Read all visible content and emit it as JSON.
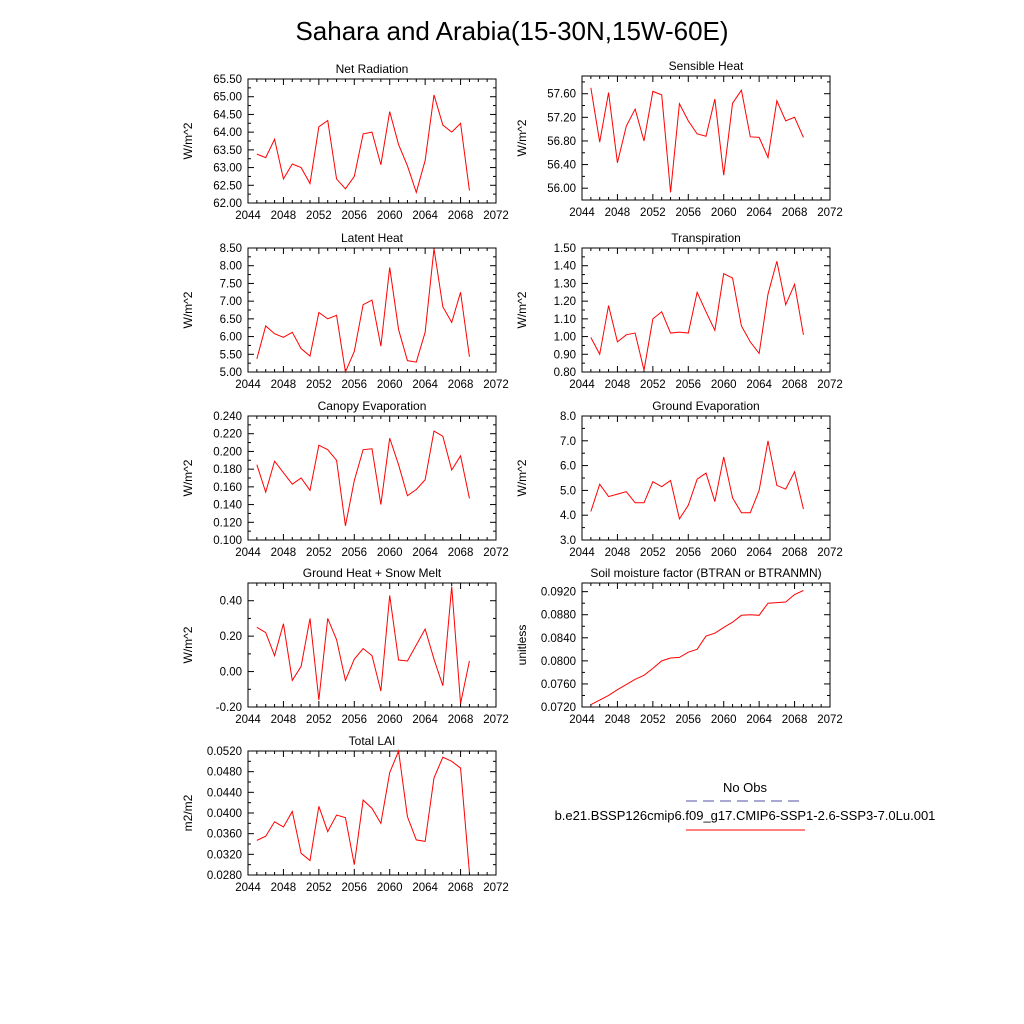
{
  "title": "Sahara and Arabia(15-30N,15W-60E)",
  "chart_data": [
    {
      "type": "line",
      "title": "Net Radiation",
      "ylabel": "W/m^2",
      "xlim": [
        2044,
        2072
      ],
      "ylim": [
        62.0,
        65.5
      ],
      "x_ticks": [
        "2044",
        "2048",
        "2052",
        "2056",
        "2060",
        "2064",
        "2068",
        "2072"
      ],
      "y_ticks": [
        "62.00",
        "62.50",
        "63.00",
        "63.50",
        "64.00",
        "64.50",
        "65.00",
        "65.50"
      ],
      "x": [
        2045,
        2046,
        2047,
        2048,
        2049,
        2050,
        2051,
        2052,
        2053,
        2054,
        2055,
        2056,
        2057,
        2058,
        2059,
        2060,
        2061,
        2062,
        2063,
        2064,
        2065,
        2066,
        2067,
        2068,
        2069
      ],
      "values": [
        63.38,
        63.28,
        63.8,
        62.68,
        63.1,
        63.0,
        62.55,
        64.15,
        64.33,
        62.68,
        62.4,
        62.75,
        63.95,
        64.0,
        63.08,
        64.58,
        63.65,
        63.05,
        62.3,
        63.2,
        65.05,
        64.2,
        64.0,
        64.25,
        62.35
      ]
    },
    {
      "type": "line",
      "title": "Sensible Heat",
      "ylabel": "W/m^2",
      "xlim": [
        2044,
        2072
      ],
      "ylim": [
        55.8,
        57.9
      ],
      "x_ticks": [
        "2044",
        "2048",
        "2052",
        "2056",
        "2060",
        "2064",
        "2068",
        "2072"
      ],
      "y_ticks": [
        "56.00",
        "56.40",
        "56.80",
        "57.20",
        "57.60"
      ],
      "x": [
        2045,
        2046,
        2047,
        2048,
        2049,
        2050,
        2051,
        2052,
        2053,
        2054,
        2055,
        2056,
        2057,
        2058,
        2059,
        2060,
        2061,
        2062,
        2063,
        2064,
        2065,
        2066,
        2067,
        2068,
        2069
      ],
      "values": [
        57.7,
        56.78,
        57.62,
        56.43,
        57.05,
        57.34,
        56.8,
        57.64,
        57.58,
        55.93,
        57.43,
        57.14,
        56.92,
        56.88,
        57.51,
        56.22,
        57.44,
        57.66,
        56.87,
        56.86,
        56.52,
        57.48,
        57.14,
        57.2,
        56.86
      ]
    },
    {
      "type": "line",
      "title": "Latent Heat",
      "ylabel": "W/m^2",
      "xlim": [
        2044,
        2072
      ],
      "ylim": [
        5.0,
        8.5
      ],
      "x_ticks": [
        "2044",
        "2048",
        "2052",
        "2056",
        "2060",
        "2064",
        "2068",
        "2072"
      ],
      "y_ticks": [
        "5.00",
        "5.50",
        "6.00",
        "6.50",
        "7.00",
        "7.50",
        "8.00",
        "8.50"
      ],
      "x": [
        2045,
        2046,
        2047,
        2048,
        2049,
        2050,
        2051,
        2052,
        2053,
        2054,
        2055,
        2056,
        2057,
        2058,
        2059,
        2060,
        2061,
        2062,
        2063,
        2064,
        2065,
        2066,
        2067,
        2068,
        2069
      ],
      "values": [
        5.37,
        6.3,
        6.08,
        5.98,
        6.12,
        5.66,
        5.45,
        6.68,
        6.5,
        6.6,
        5.0,
        5.58,
        6.9,
        7.03,
        5.73,
        7.95,
        6.2,
        5.32,
        5.28,
        6.12,
        8.48,
        6.84,
        6.4,
        7.25,
        5.43
      ]
    },
    {
      "type": "line",
      "title": "Transpiration",
      "ylabel": "W/m^2",
      "xlim": [
        2044,
        2072
      ],
      "ylim": [
        0.8,
        1.5
      ],
      "x_ticks": [
        "2044",
        "2048",
        "2052",
        "2056",
        "2060",
        "2064",
        "2068",
        "2072"
      ],
      "y_ticks": [
        "0.80",
        "0.90",
        "1.00",
        "1.10",
        "1.20",
        "1.30",
        "1.40",
        "1.50"
      ],
      "x": [
        2045,
        2046,
        2047,
        2048,
        2049,
        2050,
        2051,
        2052,
        2053,
        2054,
        2055,
        2056,
        2057,
        2058,
        2059,
        2060,
        2061,
        2062,
        2063,
        2064,
        2065,
        2066,
        2067,
        2068,
        2069
      ],
      "values": [
        0.995,
        0.9,
        1.175,
        0.97,
        1.01,
        1.02,
        0.81,
        1.1,
        1.14,
        1.02,
        1.025,
        1.02,
        1.25,
        1.14,
        1.035,
        1.355,
        1.33,
        1.06,
        0.97,
        0.905,
        1.24,
        1.425,
        1.18,
        1.295,
        1.01
      ]
    },
    {
      "type": "line",
      "title": "Canopy Evaporation",
      "ylabel": "W/m^2",
      "xlim": [
        2044,
        2072
      ],
      "ylim": [
        0.1,
        0.24
      ],
      "x_ticks": [
        "2044",
        "2048",
        "2052",
        "2056",
        "2060",
        "2064",
        "2068",
        "2072"
      ],
      "y_ticks": [
        "0.100",
        "0.120",
        "0.140",
        "0.160",
        "0.180",
        "0.200",
        "0.220",
        "0.240"
      ],
      "x": [
        2045,
        2046,
        2047,
        2048,
        2049,
        2050,
        2051,
        2052,
        2053,
        2054,
        2055,
        2056,
        2057,
        2058,
        2059,
        2060,
        2061,
        2062,
        2063,
        2064,
        2065,
        2066,
        2067,
        2068,
        2069
      ],
      "values": [
        0.185,
        0.154,
        0.189,
        0.176,
        0.163,
        0.17,
        0.156,
        0.207,
        0.202,
        0.19,
        0.116,
        0.167,
        0.202,
        0.203,
        0.14,
        0.215,
        0.185,
        0.15,
        0.157,
        0.168,
        0.223,
        0.217,
        0.179,
        0.195,
        0.147
      ]
    },
    {
      "type": "line",
      "title": "Ground Evaporation",
      "ylabel": "W/m^2",
      "xlim": [
        2044,
        2072
      ],
      "ylim": [
        3.0,
        8.0
      ],
      "x_ticks": [
        "2044",
        "2048",
        "2052",
        "2056",
        "2060",
        "2064",
        "2068",
        "2072"
      ],
      "y_ticks": [
        "3.0",
        "4.0",
        "5.0",
        "6.0",
        "7.0",
        "8.0"
      ],
      "x": [
        2045,
        2046,
        2047,
        2048,
        2049,
        2050,
        2051,
        2052,
        2053,
        2054,
        2055,
        2056,
        2057,
        2058,
        2059,
        2060,
        2061,
        2062,
        2063,
        2064,
        2065,
        2066,
        2067,
        2068,
        2069
      ],
      "values": [
        4.15,
        5.25,
        4.75,
        4.85,
        4.95,
        4.5,
        4.5,
        5.35,
        5.15,
        5.4,
        3.85,
        4.4,
        5.45,
        5.7,
        4.55,
        6.35,
        4.7,
        4.1,
        4.1,
        5.0,
        7.0,
        5.2,
        5.05,
        5.75,
        4.25
      ]
    },
    {
      "type": "line",
      "title": "Ground Heat + Snow Melt",
      "ylabel": "W/m^2",
      "xlim": [
        2044,
        2072
      ],
      "ylim": [
        -0.2,
        0.5
      ],
      "x_ticks": [
        "2044",
        "2048",
        "2052",
        "2056",
        "2060",
        "2064",
        "2068",
        "2072"
      ],
      "y_ticks": [
        "-0.20",
        "0.00",
        "0.20",
        "0.40"
      ],
      "x": [
        2045,
        2046,
        2047,
        2048,
        2049,
        2050,
        2051,
        2052,
        2053,
        2054,
        2055,
        2056,
        2057,
        2058,
        2059,
        2060,
        2061,
        2062,
        2063,
        2064,
        2065,
        2066,
        2067,
        2068,
        2069
      ],
      "values": [
        0.25,
        0.22,
        0.09,
        0.27,
        -0.05,
        0.03,
        0.3,
        -0.16,
        0.3,
        0.18,
        -0.05,
        0.07,
        0.13,
        0.09,
        -0.11,
        0.43,
        0.065,
        0.06,
        0.15,
        0.24,
        0.07,
        -0.08,
        0.48,
        -0.18,
        0.06
      ]
    },
    {
      "type": "line",
      "title": "Soil moisture factor (BTRAN or BTRANMN)",
      "ylabel": "unitless",
      "xlim": [
        2044,
        2072
      ],
      "ylim": [
        0.072,
        0.0935
      ],
      "x_ticks": [
        "2044",
        "2048",
        "2052",
        "2056",
        "2060",
        "2064",
        "2068",
        "2072"
      ],
      "y_ticks": [
        "0.0720",
        "0.0760",
        "0.0800",
        "0.0840",
        "0.0880",
        "0.0920"
      ],
      "x": [
        2045,
        2046,
        2047,
        2048,
        2049,
        2050,
        2051,
        2052,
        2053,
        2054,
        2055,
        2056,
        2057,
        2058,
        2059,
        2060,
        2061,
        2062,
        2063,
        2064,
        2065,
        2066,
        2067,
        2068,
        2069
      ],
      "values": [
        0.0724,
        0.0732,
        0.074,
        0.075,
        0.0759,
        0.0768,
        0.0775,
        0.0787,
        0.08,
        0.0805,
        0.0806,
        0.0815,
        0.082,
        0.0843,
        0.0848,
        0.0858,
        0.0867,
        0.0879,
        0.088,
        0.0879,
        0.09,
        0.0901,
        0.0902,
        0.0915,
        0.0922
      ]
    },
    {
      "type": "line",
      "title": "Total LAI",
      "ylabel": "m2/m2",
      "xlim": [
        2044,
        2072
      ],
      "ylim": [
        0.028,
        0.052
      ],
      "x_ticks": [
        "2044",
        "2048",
        "2052",
        "2056",
        "2060",
        "2064",
        "2068",
        "2072"
      ],
      "y_ticks": [
        "0.0280",
        "0.0320",
        "0.0360",
        "0.0400",
        "0.0440",
        "0.0480",
        "0.0520"
      ],
      "x": [
        2045,
        2046,
        2047,
        2048,
        2049,
        2050,
        2051,
        2052,
        2053,
        2054,
        2055,
        2056,
        2057,
        2058,
        2059,
        2060,
        2061,
        2062,
        2063,
        2064,
        2065,
        2066,
        2067,
        2068,
        2069
      ],
      "values": [
        0.0347,
        0.0355,
        0.0383,
        0.0373,
        0.0403,
        0.0322,
        0.0308,
        0.0413,
        0.0364,
        0.0396,
        0.0391,
        0.03,
        0.0425,
        0.0409,
        0.038,
        0.0478,
        0.052,
        0.0393,
        0.0348,
        0.0345,
        0.0468,
        0.0508,
        0.05,
        0.0487,
        0.0285
      ]
    }
  ],
  "legend": {
    "items": [
      {
        "label": "No Obs",
        "color": "#5050a0",
        "dash": "dashed"
      },
      {
        "label": "b.e21.BSSP126cmip6.f09_g17.CMIP6-SSP1-2.6-SSP3-7.0Lu.001",
        "color": "#ff0000",
        "dash": "solid"
      }
    ]
  }
}
